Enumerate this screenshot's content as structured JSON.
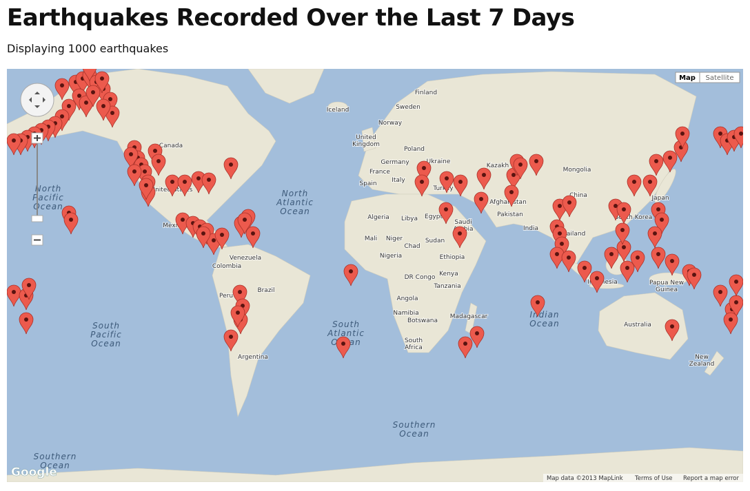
{
  "header": {
    "title": "Earthquakes Recorded Over the Last 7 Days",
    "subtitle": "Displaying 1000 earthquakes"
  },
  "map": {
    "type_controls": [
      "Map",
      "Satellite"
    ],
    "places": [
      [
        "Finland"
      ],
      [
        "Sweden"
      ],
      [
        "Norway"
      ],
      [
        "Iceland"
      ],
      [
        "United",
        "Kingdom"
      ],
      [
        "Poland"
      ],
      [
        "Ukraine"
      ],
      [
        "Germany"
      ],
      [
        "France"
      ],
      [
        "Spain"
      ],
      [
        "Italy"
      ],
      [
        "Turkey"
      ],
      [
        "Kazakh"
      ],
      [
        "Mongolia"
      ],
      [
        "China"
      ],
      [
        "Japan"
      ],
      [
        "South Korea"
      ],
      [
        "Afghanistan"
      ],
      [
        "Pakistan"
      ],
      [
        "India"
      ],
      [
        "Thailand"
      ],
      [
        "Algeria"
      ],
      [
        "Libya"
      ],
      [
        "Egypt"
      ],
      [
        "Saudi",
        "Arabia"
      ],
      [
        "Mali"
      ],
      [
        "Niger"
      ],
      [
        "Chad"
      ],
      [
        "Sudan"
      ],
      [
        "Nigeria"
      ],
      [
        "Ethiopia"
      ],
      [
        "Kenya"
      ],
      [
        "DR Congo"
      ],
      [
        "Tanzania"
      ],
      [
        "Angola"
      ],
      [
        "Namibia"
      ],
      [
        "Botswana"
      ],
      [
        "South",
        "Africa"
      ],
      [
        "Madagascar"
      ],
      [
        "Canada"
      ],
      [
        "United States"
      ],
      [
        "Mexico"
      ],
      [
        "Venezuela"
      ],
      [
        "Colombia"
      ],
      [
        "Peru"
      ],
      [
        "Brazil"
      ],
      [
        "Argentina"
      ],
      [
        "Australia"
      ],
      [
        "New",
        "Zealand"
      ],
      [
        "Papua New",
        "Guinea"
      ],
      [
        "Indonesia"
      ]
    ],
    "oceans": [
      [
        "North",
        "Pacific",
        "Ocean"
      ],
      [
        "North",
        "Atlantic",
        "Ocean"
      ],
      [
        "South",
        "Pacific",
        "Ocean"
      ],
      [
        "South",
        "Atlantic",
        "Ocean"
      ],
      [
        "Indian",
        "Ocean"
      ],
      [
        "Southern",
        "Ocean"
      ],
      [
        "Southern",
        "Ocean"
      ]
    ],
    "footer": {
      "logo": "Google",
      "attribution": "Map data ©2013 MapLink",
      "terms": "Terms of Use",
      "report": "Report a map error"
    }
  }
}
